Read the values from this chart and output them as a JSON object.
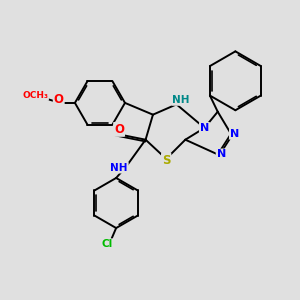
{
  "background_color": "#e0e0e0",
  "bond_color": "#000000",
  "atom_colors": {
    "N": "#0000ff",
    "O": "#ff0000",
    "S": "#aaaa00",
    "Cl": "#00bb00",
    "NH": "#008888",
    "C": "#000000"
  },
  "figsize": [
    3.0,
    3.0
  ],
  "dpi": 100
}
